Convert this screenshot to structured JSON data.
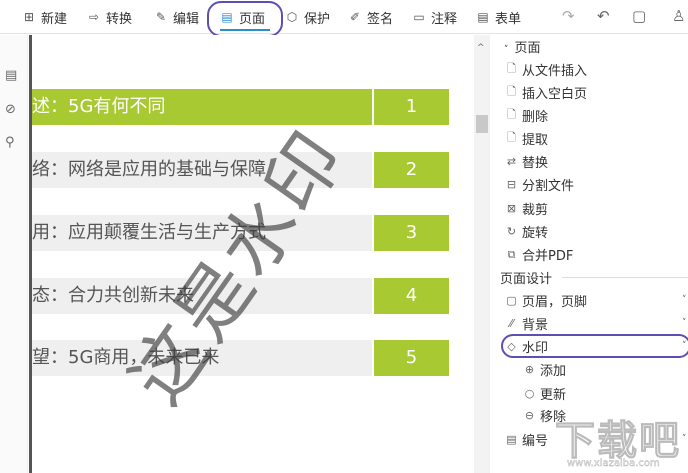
{
  "toolbar": {
    "items": [
      {
        "label": "新建",
        "icon": "plus-square-icon"
      },
      {
        "label": "转换",
        "icon": "convert-icon"
      },
      {
        "label": "编辑",
        "icon": "edit-icon"
      },
      {
        "label": "页面",
        "icon": "page-icon",
        "active": true
      },
      {
        "label": "保护",
        "icon": "shield-icon"
      },
      {
        "label": "签名",
        "icon": "pen-icon"
      },
      {
        "label": "注释",
        "icon": "comment-icon"
      },
      {
        "label": "表单",
        "icon": "form-icon"
      }
    ],
    "quick": [
      "redo-icon",
      "undo-icon",
      "save-icon",
      "user-icon"
    ]
  },
  "document": {
    "rows": [
      {
        "text": "述：5G有何不同",
        "num": "1"
      },
      {
        "text": "络：网络是应用的基础与保障",
        "num": "2"
      },
      {
        "text": "用：应用颠覆生活与生产方式",
        "num": "3"
      },
      {
        "text": "态：合力共创新未来",
        "num": "4"
      },
      {
        "text": "望：5G商用，未来已来",
        "num": "5"
      }
    ],
    "watermark": "这是水印",
    "accent": "#a8c932"
  },
  "panel": {
    "page_section": "页面",
    "page_items": [
      "从文件插入",
      "插入空白页",
      "删除",
      "提取",
      "替换",
      "分割文件",
      "裁剪",
      "旋转",
      "合并PDF"
    ],
    "design_section": "页面设计",
    "design_items": [
      "页眉，页脚",
      "背景",
      "水印"
    ],
    "watermark_sub": [
      "添加",
      "更新",
      "移除"
    ],
    "numbering": "编号"
  },
  "site_logo": {
    "text": "下载吧",
    "url": "www.xiazaiba.com"
  }
}
